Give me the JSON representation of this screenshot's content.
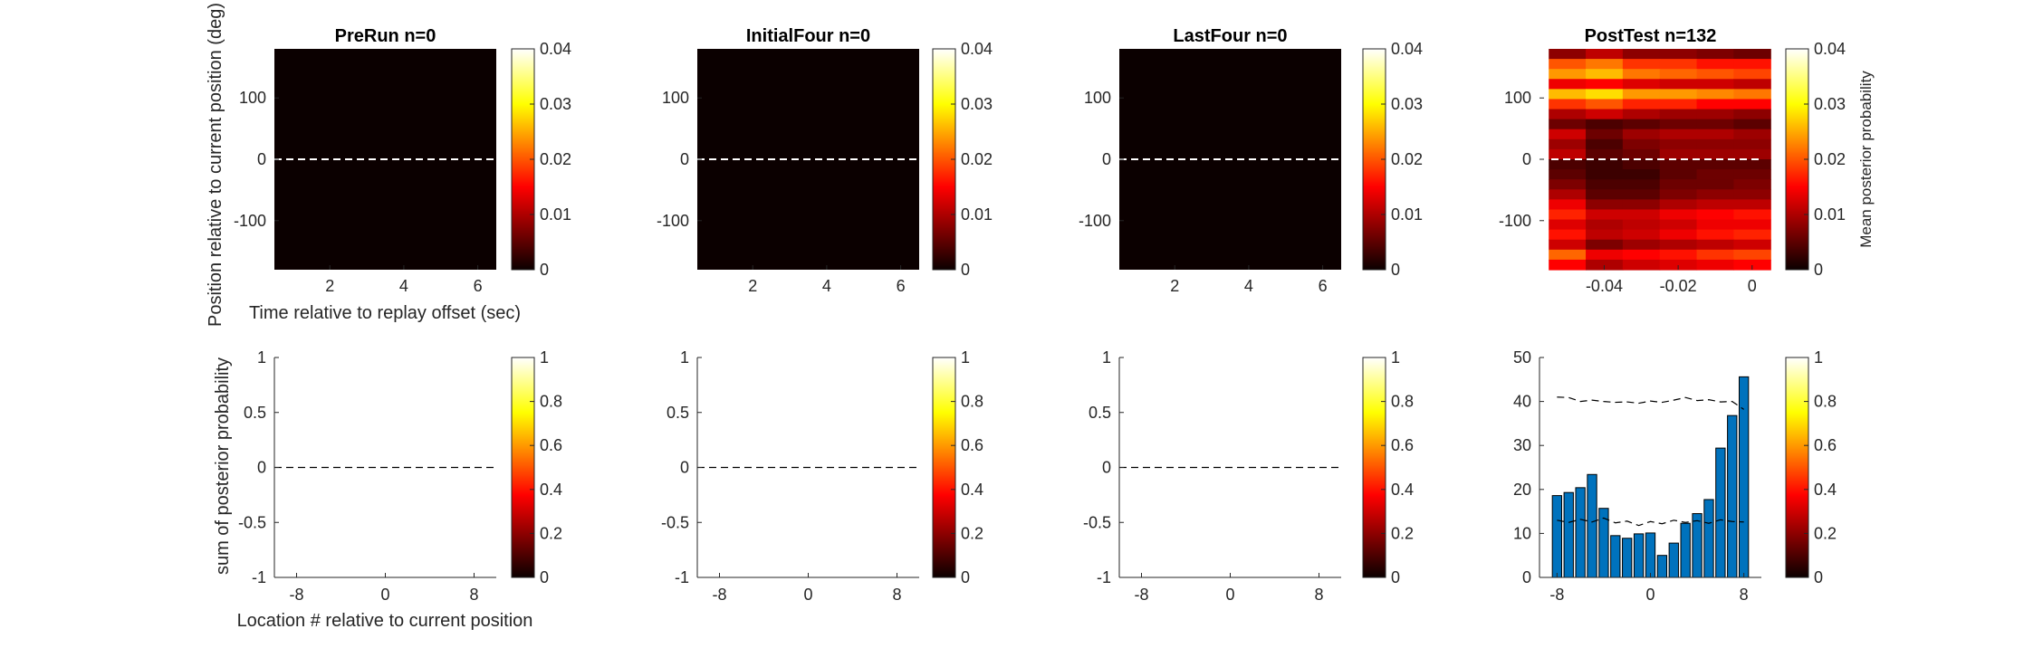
{
  "colors": {
    "hot": [
      "#0b0000",
      "#ff0000",
      "#ffff00",
      "#ffffff"
    ],
    "bar": "#0072bd",
    "zero_line": "#ffffff"
  },
  "labels": {
    "ylabel_top": "Position relative to current position (deg)",
    "xlabel_top": "Time relative to replay offset (sec)",
    "ylabel_bottom": "sum of posterior probability",
    "xlabel_bottom": "Location # relative to current position",
    "colorbar_label": "Mean posterior probability"
  },
  "chart_data": [
    {
      "type": "heatmap",
      "title": "PreRun n=0",
      "xlim": [
        0.5,
        6.5
      ],
      "ylim": [
        -180,
        180
      ],
      "xticks": [
        "2",
        "4",
        "6"
      ],
      "yticks": [
        "100",
        "0",
        "-100"
      ],
      "value": 0,
      "colorbar": {
        "range": [
          0,
          0.04
        ],
        "ticks": [
          "0.04",
          "0.03",
          "0.02",
          "0.01",
          "0"
        ]
      }
    },
    {
      "type": "heatmap",
      "title": "InitialFour n=0",
      "xlim": [
        0.5,
        6.5
      ],
      "ylim": [
        -180,
        180
      ],
      "xticks": [
        "2",
        "4",
        "6"
      ],
      "yticks": [
        "100",
        "0",
        "-100"
      ],
      "value": 0,
      "colorbar": {
        "range": [
          0,
          0.04
        ],
        "ticks": [
          "0.04",
          "0.03",
          "0.02",
          "0.01",
          "0"
        ]
      }
    },
    {
      "type": "heatmap",
      "title": "LastFour n=0",
      "xlim": [
        0.5,
        6.5
      ],
      "ylim": [
        -180,
        180
      ],
      "xticks": [
        "2",
        "4",
        "6"
      ],
      "yticks": [
        "100",
        "0",
        "-100"
      ],
      "value": 0,
      "colorbar": {
        "range": [
          0,
          0.04
        ],
        "ticks": [
          "0.04",
          "0.03",
          "0.02",
          "0.01",
          "0"
        ]
      }
    },
    {
      "type": "heatmap",
      "title": "PostTest n=132",
      "xlim": [
        -0.0575,
        0.0025
      ],
      "ylim": [
        -180,
        180
      ],
      "x_bins": [
        -0.05,
        -0.04,
        -0.03,
        -0.02,
        -0.01,
        0
      ],
      "xticks": [
        "-0.04",
        "-0.02",
        "0"
      ],
      "yticks": [
        "100",
        "0",
        "-100"
      ],
      "colorbar": {
        "range": [
          0,
          0.04
        ],
        "ticks": [
          "0.04",
          "0.03",
          "0.02",
          "0.01",
          "0"
        ]
      },
      "rows_top_to_bottom": [
        [
          0.008,
          0.011,
          0.008,
          0.008,
          0.007,
          0.006
        ],
        [
          0.02,
          0.022,
          0.018,
          0.018,
          0.016,
          0.016
        ],
        [
          0.024,
          0.026,
          0.022,
          0.021,
          0.02,
          0.019
        ],
        [
          0.014,
          0.015,
          0.013,
          0.012,
          0.012,
          0.011
        ],
        [
          0.026,
          0.028,
          0.024,
          0.024,
          0.023,
          0.022
        ],
        [
          0.018,
          0.02,
          0.017,
          0.017,
          0.015,
          0.015
        ],
        [
          0.01,
          0.012,
          0.01,
          0.009,
          0.009,
          0.008
        ],
        [
          0.006,
          0.004,
          0.005,
          0.006,
          0.006,
          0.005
        ],
        [
          0.012,
          0.006,
          0.009,
          0.01,
          0.01,
          0.009
        ],
        [
          0.009,
          0.004,
          0.007,
          0.008,
          0.008,
          0.008
        ],
        [
          0.011,
          0.005,
          0.006,
          0.009,
          0.009,
          0.009
        ],
        [
          0.004,
          0.003,
          0.004,
          0.005,
          0.005,
          0.005
        ],
        [
          0.005,
          0.003,
          0.003,
          0.005,
          0.006,
          0.006
        ],
        [
          0.007,
          0.004,
          0.004,
          0.006,
          0.006,
          0.007
        ],
        [
          0.01,
          0.005,
          0.005,
          0.007,
          0.008,
          0.008
        ],
        [
          0.014,
          0.008,
          0.008,
          0.01,
          0.011,
          0.011
        ],
        [
          0.017,
          0.012,
          0.012,
          0.014,
          0.015,
          0.016
        ],
        [
          0.013,
          0.01,
          0.011,
          0.012,
          0.014,
          0.014
        ],
        [
          0.016,
          0.011,
          0.012,
          0.014,
          0.016,
          0.017
        ],
        [
          0.012,
          0.007,
          0.009,
          0.01,
          0.011,
          0.012
        ],
        [
          0.021,
          0.014,
          0.015,
          0.016,
          0.018,
          0.019
        ],
        [
          0.015,
          0.01,
          0.012,
          0.013,
          0.014,
          0.015
        ]
      ]
    },
    {
      "type": "bar",
      "title": "",
      "xlim": [
        -10,
        10
      ],
      "ylim": [
        -1,
        1
      ],
      "xticks": [
        "-8",
        "0",
        "8"
      ],
      "yticks": [
        "1",
        "0.5",
        "0",
        "-0.5",
        "-1"
      ],
      "categories": [
        -8,
        -7,
        -6,
        -5,
        -4,
        -3,
        -2,
        -1,
        0,
        1,
        2,
        3,
        4,
        5,
        6,
        7,
        8
      ],
      "values": [
        0,
        0,
        0,
        0,
        0,
        0,
        0,
        0,
        0,
        0,
        0,
        0,
        0,
        0,
        0,
        0,
        0
      ],
      "colorbar": {
        "range": [
          0,
          1
        ],
        "ticks": [
          "1",
          "0.8",
          "0.6",
          "0.4",
          "0.2",
          "0"
        ]
      }
    },
    {
      "type": "bar",
      "title": "",
      "xlim": [
        -10,
        10
      ],
      "ylim": [
        -1,
        1
      ],
      "xticks": [
        "-8",
        "0",
        "8"
      ],
      "yticks": [
        "1",
        "0.5",
        "0",
        "-0.5",
        "-1"
      ],
      "categories": [
        -8,
        -7,
        -6,
        -5,
        -4,
        -3,
        -2,
        -1,
        0,
        1,
        2,
        3,
        4,
        5,
        6,
        7,
        8
      ],
      "values": [
        0,
        0,
        0,
        0,
        0,
        0,
        0,
        0,
        0,
        0,
        0,
        0,
        0,
        0,
        0,
        0,
        0
      ],
      "colorbar": {
        "range": [
          0,
          1
        ],
        "ticks": [
          "1",
          "0.8",
          "0.6",
          "0.4",
          "0.2",
          "0"
        ]
      }
    },
    {
      "type": "bar",
      "title": "",
      "xlim": [
        -10,
        10
      ],
      "ylim": [
        -1,
        1
      ],
      "xticks": [
        "-8",
        "0",
        "8"
      ],
      "yticks": [
        "1",
        "0.5",
        "0",
        "-0.5",
        "-1"
      ],
      "categories": [
        -8,
        -7,
        -6,
        -5,
        -4,
        -3,
        -2,
        -1,
        0,
        1,
        2,
        3,
        4,
        5,
        6,
        7,
        8
      ],
      "values": [
        0,
        0,
        0,
        0,
        0,
        0,
        0,
        0,
        0,
        0,
        0,
        0,
        0,
        0,
        0,
        0,
        0
      ],
      "colorbar": {
        "range": [
          0,
          1
        ],
        "ticks": [
          "1",
          "0.8",
          "0.6",
          "0.4",
          "0.2",
          "0"
        ]
      }
    },
    {
      "type": "bar",
      "title": "",
      "xlim": [
        -9.5,
        9.5
      ],
      "ylim": [
        0,
        50
      ],
      "xticks": [
        "-8",
        "0",
        "8"
      ],
      "yticks": [
        "50",
        "40",
        "30",
        "20",
        "10",
        "0"
      ],
      "categories": [
        -8,
        -7,
        -6,
        -5,
        -4,
        -3,
        -2,
        -1,
        0,
        1,
        2,
        3,
        4,
        5,
        6,
        7,
        8
      ],
      "values": [
        18.6,
        19.3,
        20.4,
        23.4,
        15.7,
        9.5,
        8.9,
        9.9,
        10.1,
        5.0,
        7.8,
        12.3,
        14.5,
        17.7,
        29.4,
        36.8,
        45.6
      ],
      "upper_dashed": [
        41.0,
        40.9,
        40.0,
        40.3,
        40.0,
        39.8,
        39.9,
        39.6,
        40.1,
        39.8,
        40.3,
        40.9,
        40.2,
        40.4,
        39.9,
        40.0,
        38.2
      ],
      "lower_dashed": [
        13.0,
        12.5,
        13.2,
        12.6,
        13.5,
        12.4,
        12.8,
        11.8,
        12.7,
        12.2,
        13.0,
        12.5,
        12.9,
        12.3,
        13.1,
        12.7,
        12.6
      ],
      "colorbar": {
        "range": [
          0,
          1
        ],
        "ticks": [
          "1",
          "0.8",
          "0.6",
          "0.4",
          "0.2",
          "0"
        ]
      }
    }
  ]
}
